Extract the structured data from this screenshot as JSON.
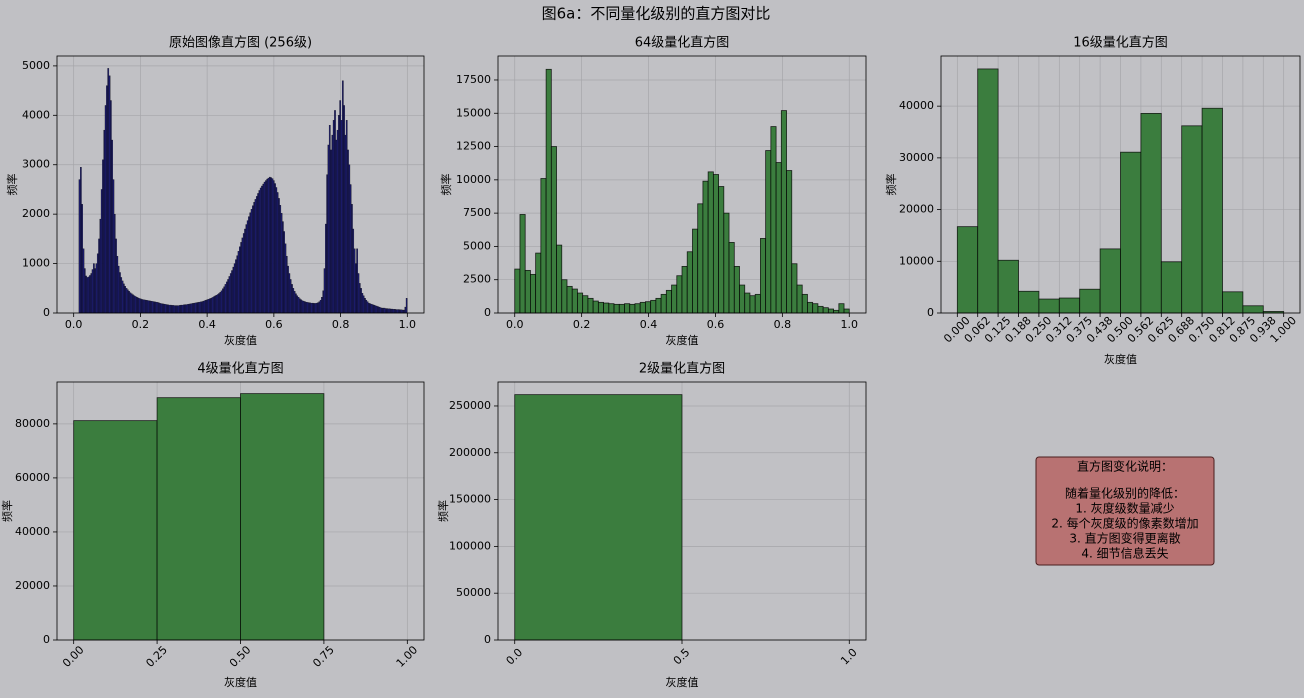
{
  "title": "图6a：不同量化级别的直方图对比",
  "chart_data": [
    {
      "type": "histogram",
      "title": "原始图像直方图 (256级)",
      "xlabel": "灰度值",
      "ylabel": "频率",
      "bins": [
        0,
        0.0039,
        0.0078,
        0.0117,
        0.0156,
        0.0195,
        0.0234,
        0.0273,
        0.0313,
        0.0352,
        0.0391,
        0.043,
        0.0469,
        0.0508,
        0.0547,
        0.0586,
        0.0625,
        0.0664,
        0.0703,
        0.0742,
        0.0781,
        0.082,
        0.0859,
        0.0898,
        0.0938,
        0.0977,
        0.1016,
        0.1055,
        0.1094,
        0.1133,
        0.1172,
        0.1211,
        0.125,
        0.1289,
        0.1328,
        0.1367,
        0.1406,
        0.1445,
        0.1484,
        0.1523,
        0.1563,
        0.1602,
        0.1641,
        0.168,
        0.1719,
        0.1758,
        0.1797,
        0.1836,
        0.1875,
        0.1914,
        0.1953,
        0.1992,
        0.2031,
        0.207,
        0.2109,
        0.2148,
        0.2188,
        0.2227,
        0.2266,
        0.2305,
        0.2344,
        0.2383,
        0.2422,
        0.2461,
        0.25,
        0.2539,
        0.2578,
        0.2617,
        0.2656,
        0.2695,
        0.2734,
        0.2773,
        0.2813,
        0.2852,
        0.2891,
        0.293,
        0.2969,
        0.3008,
        0.3047,
        0.3086,
        0.3125,
        0.3164,
        0.3203,
        0.3242,
        0.3281,
        0.332,
        0.3359,
        0.3398,
        0.3438,
        0.3477,
        0.3516,
        0.3555,
        0.3594,
        0.3633,
        0.3672,
        0.3711,
        0.375,
        0.3789,
        0.3828,
        0.3867,
        0.3906,
        0.3945,
        0.3984,
        0.4023,
        0.4063,
        0.4102,
        0.4141,
        0.418,
        0.4219,
        0.4258,
        0.4297,
        0.4336,
        0.4375,
        0.4414,
        0.4453,
        0.4492,
        0.4531,
        0.457,
        0.4609,
        0.4648,
        0.4688,
        0.4727,
        0.4766,
        0.4805,
        0.4844,
        0.4883,
        0.4922,
        0.4961,
        0.5,
        0.5039,
        0.5078,
        0.5117,
        0.5156,
        0.5195,
        0.5234,
        0.5273,
        0.5313,
        0.5352,
        0.5391,
        0.543,
        0.5469,
        0.5508,
        0.5547,
        0.5586,
        0.5625,
        0.5664,
        0.5703,
        0.5742,
        0.5781,
        0.582,
        0.5859,
        0.5898,
        0.5938,
        0.5977,
        0.6016,
        0.6055,
        0.6094,
        0.6133,
        0.6172,
        0.6211,
        0.625,
        0.6289,
        0.6328,
        0.6367,
        0.6406,
        0.6445,
        0.6484,
        0.6523,
        0.6563,
        0.6602,
        0.6641,
        0.668,
        0.6719,
        0.6758,
        0.6797,
        0.6836,
        0.6875,
        0.6914,
        0.6953,
        0.6992,
        0.7031,
        0.707,
        0.7109,
        0.7148,
        0.7188,
        0.7227,
        0.7266,
        0.7305,
        0.7344,
        0.7383,
        0.7422,
        0.7461,
        0.75,
        0.7539,
        0.7578,
        0.7617,
        0.7656,
        0.7695,
        0.7734,
        0.7773,
        0.7813,
        0.7852,
        0.7891,
        0.793,
        0.7969,
        0.8008,
        0.8047,
        0.8086,
        0.8125,
        0.8164,
        0.8203,
        0.8242,
        0.8281,
        0.832,
        0.8359,
        0.8398,
        0.8438,
        0.8477,
        0.8516,
        0.8555,
        0.8594,
        0.8633,
        0.8672,
        0.8711,
        0.875,
        0.8789,
        0.8828,
        0.8867,
        0.8906,
        0.8945,
        0.8984,
        0.9023,
        0.9063,
        0.9102,
        0.9141,
        0.918,
        0.9219,
        0.9258,
        0.9297,
        0.9336,
        0.9375,
        0.9414,
        0.9453,
        0.9492,
        0.9531,
        0.957,
        0.9609,
        0.9648,
        0.9688,
        0.9727,
        0.9766,
        0.9805,
        0.9844,
        0.9883,
        0.9922,
        0.9961,
        1
      ],
      "values": [
        0,
        0,
        0,
        0,
        2700,
        2950,
        2200,
        1300,
        900,
        750,
        720,
        730,
        760,
        800,
        880,
        1000,
        900,
        1000,
        1200,
        1500,
        1900,
        2500,
        3100,
        3700,
        4200,
        4600,
        4950,
        4800,
        4300,
        3500,
        2700,
        2000,
        1500,
        1150,
        950,
        820,
        720,
        650,
        590,
        540,
        500,
        470,
        440,
        410,
        390,
        370,
        350,
        335,
        320,
        305,
        295,
        285,
        275,
        270,
        265,
        260,
        255,
        250,
        245,
        240,
        235,
        230,
        225,
        220,
        215,
        205,
        195,
        190,
        185,
        180,
        175,
        170,
        165,
        160,
        160,
        155,
        155,
        150,
        150,
        150,
        150,
        155,
        160,
        160,
        165,
        170,
        170,
        175,
        180,
        185,
        190,
        195,
        200,
        205,
        210,
        215,
        220,
        225,
        230,
        240,
        250,
        260,
        270,
        280,
        290,
        300,
        315,
        330,
        345,
        360,
        375,
        395,
        420,
        450,
        490,
        530,
        580,
        630,
        680,
        740,
        800,
        860,
        930,
        1000,
        1080,
        1160,
        1250,
        1340,
        1430,
        1520,
        1610,
        1700,
        1790,
        1870,
        1950,
        2030,
        2100,
        2170,
        2240,
        2300,
        2360,
        2420,
        2480,
        2530,
        2570,
        2610,
        2650,
        2680,
        2710,
        2730,
        2750,
        2740,
        2720,
        2680,
        2620,
        2540,
        2440,
        2320,
        2180,
        2020,
        1850,
        1650,
        1400,
        1150,
        950,
        800,
        680,
        580,
        500,
        440,
        390,
        350,
        320,
        290,
        270,
        250,
        240,
        230,
        220,
        215,
        210,
        205,
        200,
        200,
        195,
        195,
        200,
        210,
        230,
        260,
        320,
        450,
        900,
        1800,
        2800,
        3400,
        3800,
        3300,
        3600,
        3900,
        4100,
        3500,
        3700,
        4000,
        4300,
        3900,
        4700,
        4200,
        3600,
        3900,
        3300,
        3000,
        2600,
        2200,
        1700,
        1300,
        1000,
        1300,
        800,
        600,
        500,
        400,
        350,
        300,
        260,
        230,
        200,
        190,
        180,
        170,
        160,
        150,
        140,
        130,
        120,
        110,
        100,
        100,
        100,
        90,
        90,
        85,
        85,
        80,
        80,
        75,
        75,
        70,
        70,
        70,
        65,
        65,
        60,
        60,
        120,
        300
      ],
      "color": "#1c1c6e",
      "edgecolor": "#000000",
      "xlim": [
        -0.05,
        1.05
      ],
      "ylim": [
        0,
        5200
      ],
      "xticks": [
        {
          "value": 0,
          "label": "0.0"
        },
        0.2,
        0.4,
        0.6,
        0.8,
        {
          "value": 1,
          "label": "1.0"
        }
      ],
      "yticks": [
        0,
        1000,
        2000,
        3000,
        4000,
        5000
      ],
      "grid": true
    },
    {
      "type": "histogram",
      "title": "64级量化直方图",
      "xlabel": "灰度值",
      "ylabel": "频率",
      "bins": [
        0,
        0.0156,
        0.0313,
        0.0469,
        0.0625,
        0.0781,
        0.0938,
        0.1094,
        0.125,
        0.1406,
        0.1563,
        0.1719,
        0.1875,
        0.2031,
        0.2188,
        0.2344,
        0.25,
        0.2656,
        0.2813,
        0.2969,
        0.3125,
        0.3281,
        0.3438,
        0.3594,
        0.375,
        0.3906,
        0.4063,
        0.4219,
        0.4375,
        0.4531,
        0.4688,
        0.4844,
        0.5,
        0.5156,
        0.5313,
        0.5469,
        0.5625,
        0.5781,
        0.5938,
        0.6094,
        0.625,
        0.6406,
        0.6563,
        0.6719,
        0.6875,
        0.7031,
        0.7188,
        0.7344,
        0.75,
        0.7656,
        0.7813,
        0.7969,
        0.8125,
        0.8281,
        0.8438,
        0.8594,
        0.875,
        0.8906,
        0.9063,
        0.9219,
        0.9375,
        0.9531,
        0.9688,
        0.9844,
        1
      ],
      "values": [
        3300,
        7400,
        3200,
        2900,
        4500,
        10100,
        18300,
        12500,
        5100,
        2500,
        2000,
        1800,
        1500,
        1300,
        1100,
        900,
        800,
        750,
        700,
        650,
        650,
        700,
        650,
        700,
        800,
        850,
        950,
        1100,
        1400,
        1700,
        2100,
        2800,
        3500,
        4600,
        6300,
        8200,
        9900,
        10600,
        10400,
        9500,
        7500,
        5300,
        3500,
        2100,
        1500,
        1300,
        1400,
        5600,
        12200,
        14000,
        11300,
        15200,
        10700,
        3700,
        2100,
        1400,
        800,
        700,
        500,
        400,
        300,
        200,
        700,
        300
      ],
      "color": "#3b7d3e",
      "edgecolor": "#000000",
      "xlim": [
        -0.05,
        1.05
      ],
      "ylim": [
        0,
        19300
      ],
      "xticks": [
        {
          "value": 0,
          "label": "0.0"
        },
        0.2,
        0.4,
        0.6,
        0.8,
        {
          "value": 1,
          "label": "1.0"
        }
      ],
      "yticks": [
        0,
        2500,
        5000,
        7500,
        10000,
        12500,
        15000,
        17500
      ],
      "grid": true
    },
    {
      "type": "histogram",
      "title": "16级量化直方图",
      "xlabel": "灰度值",
      "ylabel": "频率",
      "bins": [
        0,
        0.0625,
        0.125,
        0.1875,
        0.25,
        0.3125,
        0.375,
        0.4375,
        0.5,
        0.5625,
        0.625,
        0.6875,
        0.75,
        0.8125,
        0.875,
        0.9375,
        1
      ],
      "values": [
        16700,
        47200,
        10200,
        4200,
        2700,
        2900,
        4600,
        12400,
        31100,
        38600,
        9900,
        36200,
        39600,
        4100,
        1400,
        300
      ],
      "color": "#3b7d3e",
      "edgecolor": "#000000",
      "xlim": [
        -0.05,
        1.05
      ],
      "ylim": [
        0,
        49700
      ],
      "xticks": [
        {
          "value": 0,
          "label": "0.000"
        },
        {
          "value": 0.0625,
          "label": "0.062"
        },
        0.125,
        {
          "value": 0.1875,
          "label": "0.188"
        },
        {
          "value": 0.25,
          "label": "0.250"
        },
        {
          "value": 0.3125,
          "label": "0.312"
        },
        0.375,
        {
          "value": 0.4375,
          "label": "0.438"
        },
        {
          "value": 0.5,
          "label": "0.500"
        },
        {
          "value": 0.5625,
          "label": "0.562"
        },
        0.625,
        {
          "value": 0.6875,
          "label": "0.688"
        },
        {
          "value": 0.75,
          "label": "0.750"
        },
        {
          "value": 0.8125,
          "label": "0.812"
        },
        0.875,
        {
          "value": 0.9375,
          "label": "0.938"
        },
        {
          "value": 1,
          "label": "1.000"
        }
      ],
      "xtick_rotation": 45,
      "yticks": [
        0,
        10000,
        20000,
        30000,
        40000
      ],
      "grid": true
    },
    {
      "type": "histogram",
      "title": "4级量化直方图",
      "xlabel": "灰度值",
      "ylabel": "频率",
      "bins": [
        0,
        0.25,
        0.5,
        0.75
      ],
      "values": [
        81200,
        89700,
        91200
      ],
      "color": "#3b7d3e",
      "edgecolor": "#000000",
      "xlim": [
        -0.05,
        1.05
      ],
      "ylim": [
        0,
        95500
      ],
      "xticks": [
        {
          "value": 0,
          "label": "0.00"
        },
        0.25,
        {
          "value": 0.5,
          "label": "0.50"
        },
        0.75,
        {
          "value": 1,
          "label": "1.00"
        }
      ],
      "xtick_rotation": 45,
      "yticks": [
        0,
        20000,
        40000,
        60000,
        80000
      ],
      "grid": true
    },
    {
      "type": "histogram",
      "title": "2级量化直方图",
      "xlabel": "灰度值",
      "ylabel": "频率",
      "bins": [
        0,
        0.5
      ],
      "values": [
        262100
      ],
      "color": "#3b7d3e",
      "edgecolor": "#000000",
      "xlim": [
        -0.05,
        1.05
      ],
      "ylim": [
        0,
        275600
      ],
      "xticks": [
        {
          "value": 0,
          "label": "0.0"
        },
        0.5,
        {
          "value": 1,
          "label": "1.0"
        }
      ],
      "xtick_rotation": 45,
      "yticks": [
        0,
        50000,
        100000,
        150000,
        200000,
        250000
      ],
      "grid": true
    }
  ],
  "note": {
    "heading": "直方图变化说明：",
    "lines": [
      "随着量化级别的降低：",
      "1. 灰度级数量减少",
      "2. 每个灰度级的像素数增加",
      "3. 直方图变得更离散",
      "4. 细节信息丢失"
    ]
  }
}
